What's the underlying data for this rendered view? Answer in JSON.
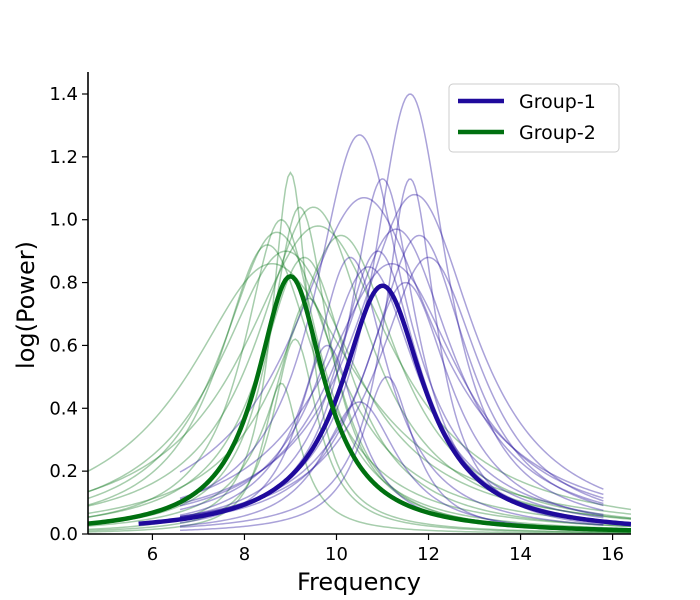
{
  "chart_data": {
    "type": "line",
    "title": "",
    "xlabel": "Frequency",
    "ylabel": "log(Power)",
    "xlim": [
      4.6,
      16.4
    ],
    "ylim": [
      0.0,
      1.47
    ],
    "xticks": [
      6,
      8,
      10,
      12,
      14,
      16
    ],
    "yticks": [
      0.0,
      0.2,
      0.4,
      0.6,
      0.8,
      1.0,
      1.2,
      1.4
    ],
    "grid": false,
    "legend_position": "top-right",
    "colors": {
      "group1": "#1f0a9c",
      "group2": "#007010"
    },
    "series": [
      {
        "name": "Group-1",
        "kind": "mean",
        "color": "#1f0a9c",
        "center": 11.0,
        "height": 0.79,
        "width": 1.1,
        "x_range": [
          5.7,
          16.4
        ]
      },
      {
        "name": "Group-2",
        "kind": "mean",
        "color": "#007010",
        "center": 9.0,
        "height": 0.82,
        "width": 0.9,
        "x_range": [
          4.6,
          16.4
        ]
      }
    ],
    "subject_curves": {
      "group1": [
        {
          "center": 11.6,
          "height": 1.4,
          "width": 1.0
        },
        {
          "center": 10.5,
          "height": 1.27,
          "width": 1.2
        },
        {
          "center": 11.0,
          "height": 1.13,
          "width": 0.9
        },
        {
          "center": 11.6,
          "height": 1.13,
          "width": 0.7
        },
        {
          "center": 11.7,
          "height": 1.08,
          "width": 1.6
        },
        {
          "center": 10.6,
          "height": 1.07,
          "width": 1.9
        },
        {
          "center": 11.3,
          "height": 0.97,
          "width": 1.5
        },
        {
          "center": 11.8,
          "height": 0.95,
          "width": 1.3
        },
        {
          "center": 12.0,
          "height": 0.88,
          "width": 1.4
        },
        {
          "center": 10.9,
          "height": 0.9,
          "width": 1.1
        },
        {
          "center": 10.3,
          "height": 0.88,
          "width": 1.0
        },
        {
          "center": 11.2,
          "height": 0.86,
          "width": 1.8
        },
        {
          "center": 10.7,
          "height": 0.85,
          "width": 1.3
        },
        {
          "center": 11.5,
          "height": 0.8,
          "width": 1.2
        },
        {
          "center": 11.1,
          "height": 0.5,
          "width": 0.7
        },
        {
          "center": 10.5,
          "height": 0.42,
          "width": 1.0
        },
        {
          "center": 9.8,
          "height": 0.6,
          "width": 0.8
        }
      ],
      "group2": [
        {
          "center": 9.0,
          "height": 1.15,
          "width": 0.5
        },
        {
          "center": 9.2,
          "height": 1.04,
          "width": 0.8
        },
        {
          "center": 9.5,
          "height": 1.04,
          "width": 1.5
        },
        {
          "center": 8.8,
          "height": 1.0,
          "width": 1.0
        },
        {
          "center": 9.6,
          "height": 0.98,
          "width": 2.0
        },
        {
          "center": 8.7,
          "height": 0.96,
          "width": 1.5
        },
        {
          "center": 8.5,
          "height": 0.92,
          "width": 1.3
        },
        {
          "center": 8.9,
          "height": 0.9,
          "width": 1.8
        },
        {
          "center": 8.6,
          "height": 0.86,
          "width": 2.2
        },
        {
          "center": 9.3,
          "height": 0.88,
          "width": 1.2
        },
        {
          "center": 10.1,
          "height": 0.95,
          "width": 1.5
        },
        {
          "center": 8.8,
          "height": 0.48,
          "width": 0.5
        },
        {
          "center": 9.1,
          "height": 0.62,
          "width": 0.6
        },
        {
          "center": 9.4,
          "height": 0.75,
          "width": 0.9
        }
      ]
    }
  }
}
